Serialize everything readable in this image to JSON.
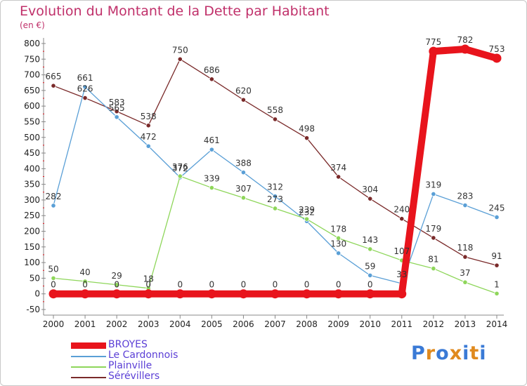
{
  "title": "Evolution du Montant de la Dette par Habitant",
  "unit": "(en €)",
  "logo": {
    "text": "Proxiti",
    "colors": [
      "#3a7ad6",
      "#e08a1e",
      "#3a7ad6",
      "#e08a1e",
      "#3a7ad6",
      "#e08a1e",
      "#3a7ad6"
    ]
  },
  "chart_data": {
    "type": "line",
    "title": "Evolution du Montant de la Dette par Habitant",
    "ylabel": "(en €)",
    "xlabel": "",
    "x": [
      "2000",
      "2001",
      "2002",
      "2003",
      "2004",
      "2005",
      "2006",
      "2007",
      "2008",
      "2009",
      "2010",
      "2011",
      "2012",
      "2013",
      "2014"
    ],
    "ylim": [
      -50,
      800
    ],
    "yticks": [
      -50,
      0,
      50,
      100,
      150,
      200,
      250,
      300,
      350,
      400,
      450,
      500,
      550,
      600,
      650,
      700,
      750,
      800
    ],
    "grid": false,
    "legend": "bottom-left",
    "series": [
      {
        "name": "BROYES",
        "color": "#e8141c",
        "values": [
          0,
          0,
          0,
          0,
          0,
          0,
          0,
          0,
          0,
          0,
          0,
          0,
          775,
          782,
          753
        ],
        "labels": [
          "0",
          "0",
          "0",
          "0",
          "0",
          "0",
          "0",
          "0",
          "0",
          "0",
          "0",
          "",
          "775",
          "782",
          "753"
        ]
      },
      {
        "name": "Le Cardonnois",
        "color": "#5a9fd6",
        "values": [
          282,
          661,
          565,
          472,
          372,
          461,
          388,
          312,
          232,
          130,
          59,
          33,
          319,
          283,
          245
        ],
        "labels": [
          "282",
          "661",
          "565",
          "472",
          "372",
          "461",
          "388",
          "312",
          "232",
          "130",
          "59",
          "33",
          "319",
          "283",
          "245"
        ]
      },
      {
        "name": "Plainville",
        "color": "#8ed65a",
        "values": [
          50,
          40,
          29,
          18,
          376,
          339,
          307,
          273,
          239,
          178,
          143,
          107,
          81,
          37,
          1
        ],
        "labels": [
          "50",
          "40",
          "29",
          "18",
          "376",
          "339",
          "307",
          "273",
          "239",
          "178",
          "143",
          "107",
          "81",
          "37",
          "1"
        ]
      },
      {
        "name": "Sérévillers",
        "color": "#7a2a2a",
        "values": [
          665,
          626,
          583,
          538,
          750,
          686,
          620,
          558,
          498,
          374,
          304,
          240,
          179,
          118,
          91
        ],
        "labels": [
          "665",
          "626",
          "583",
          "538",
          "750",
          "686",
          "620",
          "558",
          "498",
          "374",
          "304",
          "240",
          "179",
          "118",
          "91"
        ]
      }
    ]
  }
}
